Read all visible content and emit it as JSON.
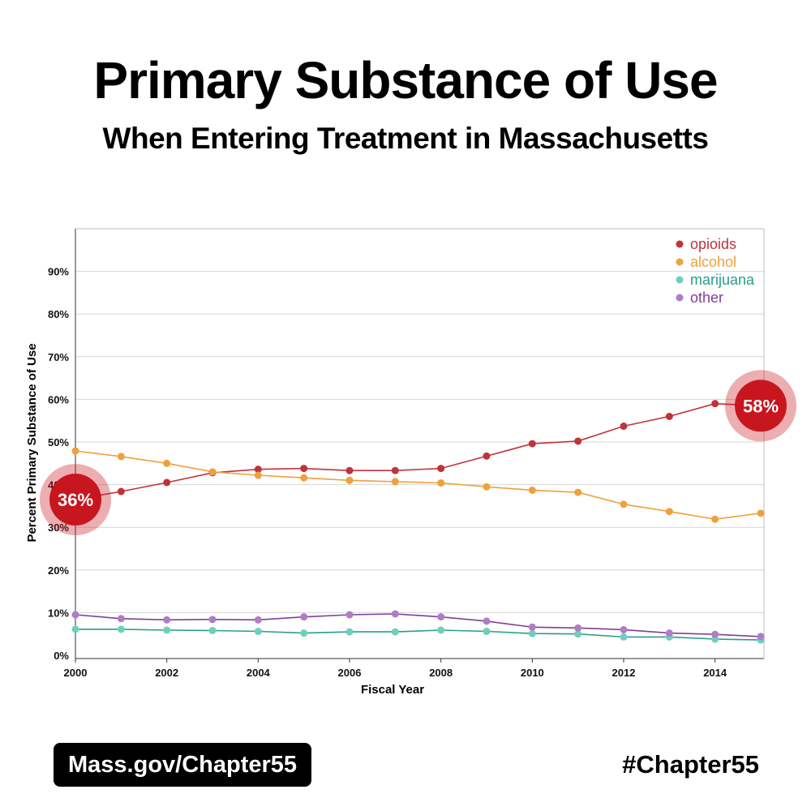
{
  "header": {
    "title": "Primary Substance of Use",
    "subtitle": "When Entering Treatment in Massachusetts"
  },
  "footer": {
    "link_label": "Mass.gov/Chapter55",
    "hashtag": "#Chapter55"
  },
  "chart_data": {
    "type": "line",
    "xlabel": "Fiscal Year",
    "ylabel": "Percent Primary Substance of Use",
    "xlim": [
      2000,
      2015
    ],
    "ylim": [
      0,
      100
    ],
    "x_ticks": [
      2000,
      2002,
      2004,
      2006,
      2008,
      2010,
      2012,
      2014
    ],
    "x_tick_labels": [
      "2000",
      "2002",
      "2004",
      "2006",
      "2008",
      "2010",
      "2012",
      "2014"
    ],
    "y_ticks": [
      0,
      10,
      20,
      30,
      40,
      50,
      60,
      70,
      80,
      90
    ],
    "y_tick_labels": [
      "0%",
      "10%",
      "20%",
      "30%",
      "40%",
      "50%",
      "60%",
      "70%",
      "80%",
      "90%"
    ],
    "grid": "horizontal",
    "legend_position": "top-right",
    "x": [
      2000,
      2001,
      2002,
      2003,
      2004,
      2005,
      2006,
      2007,
      2008,
      2009,
      2010,
      2011,
      2012,
      2013,
      2014,
      2015
    ],
    "series": [
      {
        "name": "opioids",
        "color": "#c0323c",
        "values": [
          36.5,
          38.4,
          40.5,
          42.8,
          43.6,
          43.8,
          43.3,
          43.3,
          43.8,
          46.7,
          49.6,
          50.2,
          53.7,
          56.0,
          59.0,
          58.5
        ]
      },
      {
        "name": "alcohol",
        "color": "#f0a03c",
        "values": [
          47.9,
          46.6,
          45.0,
          43.0,
          42.2,
          41.6,
          41.0,
          40.7,
          40.4,
          39.5,
          38.7,
          38.2,
          35.4,
          33.7,
          31.9,
          33.3
        ]
      },
      {
        "name": "marijuana",
        "color": "#6ecfbd",
        "line_color": "#2a9d8a",
        "values": [
          6.1,
          6.1,
          5.9,
          5.8,
          5.6,
          5.2,
          5.5,
          5.5,
          5.9,
          5.6,
          5.1,
          5.0,
          4.3,
          4.3,
          3.8,
          3.6
        ]
      },
      {
        "name": "other",
        "color": "#b07cc6",
        "line_color": "#7f3f98",
        "values": [
          9.5,
          8.6,
          8.3,
          8.4,
          8.3,
          9.0,
          9.5,
          9.7,
          9.0,
          8.0,
          6.6,
          6.4,
          6.0,
          5.2,
          4.9,
          4.4
        ]
      }
    ],
    "annotations": [
      {
        "text": "36%",
        "x": 2000,
        "y": 36.5,
        "color": "#c8161f"
      },
      {
        "text": "58%",
        "x": 2015,
        "y": 58.5,
        "color": "#c8161f"
      }
    ]
  }
}
